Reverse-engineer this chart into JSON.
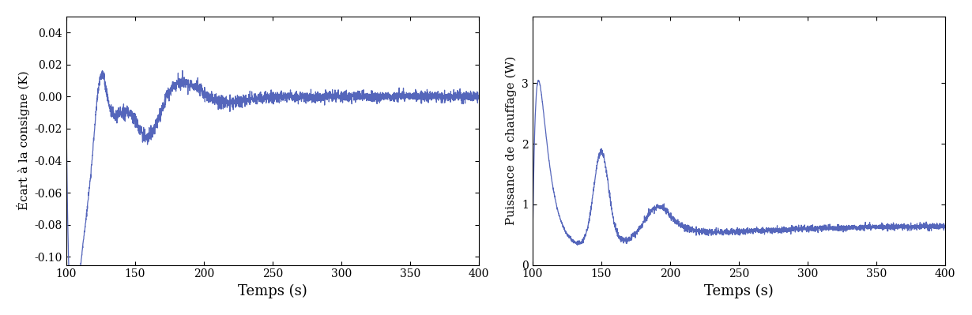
{
  "left_ylabel": "Écart à la consigne (K)",
  "right_ylabel": "Puissance de chauffage (W)",
  "xlabel": "Temps (s)",
  "left_ylim": [
    -0.105,
    0.05
  ],
  "left_yticks": [
    0.04,
    0.02,
    0.0,
    -0.02,
    -0.04,
    -0.06,
    -0.08,
    -0.1
  ],
  "right_ylim": [
    0,
    4.1
  ],
  "right_yticks": [
    0,
    1,
    2,
    3
  ],
  "xlim": [
    100,
    400
  ],
  "xticks": [
    100,
    150,
    200,
    250,
    300,
    350,
    400
  ],
  "line_color": "#5566bb",
  "bg_color": "#ffffff",
  "figsize": [
    12.3,
    3.99
  ],
  "dpi": 100
}
